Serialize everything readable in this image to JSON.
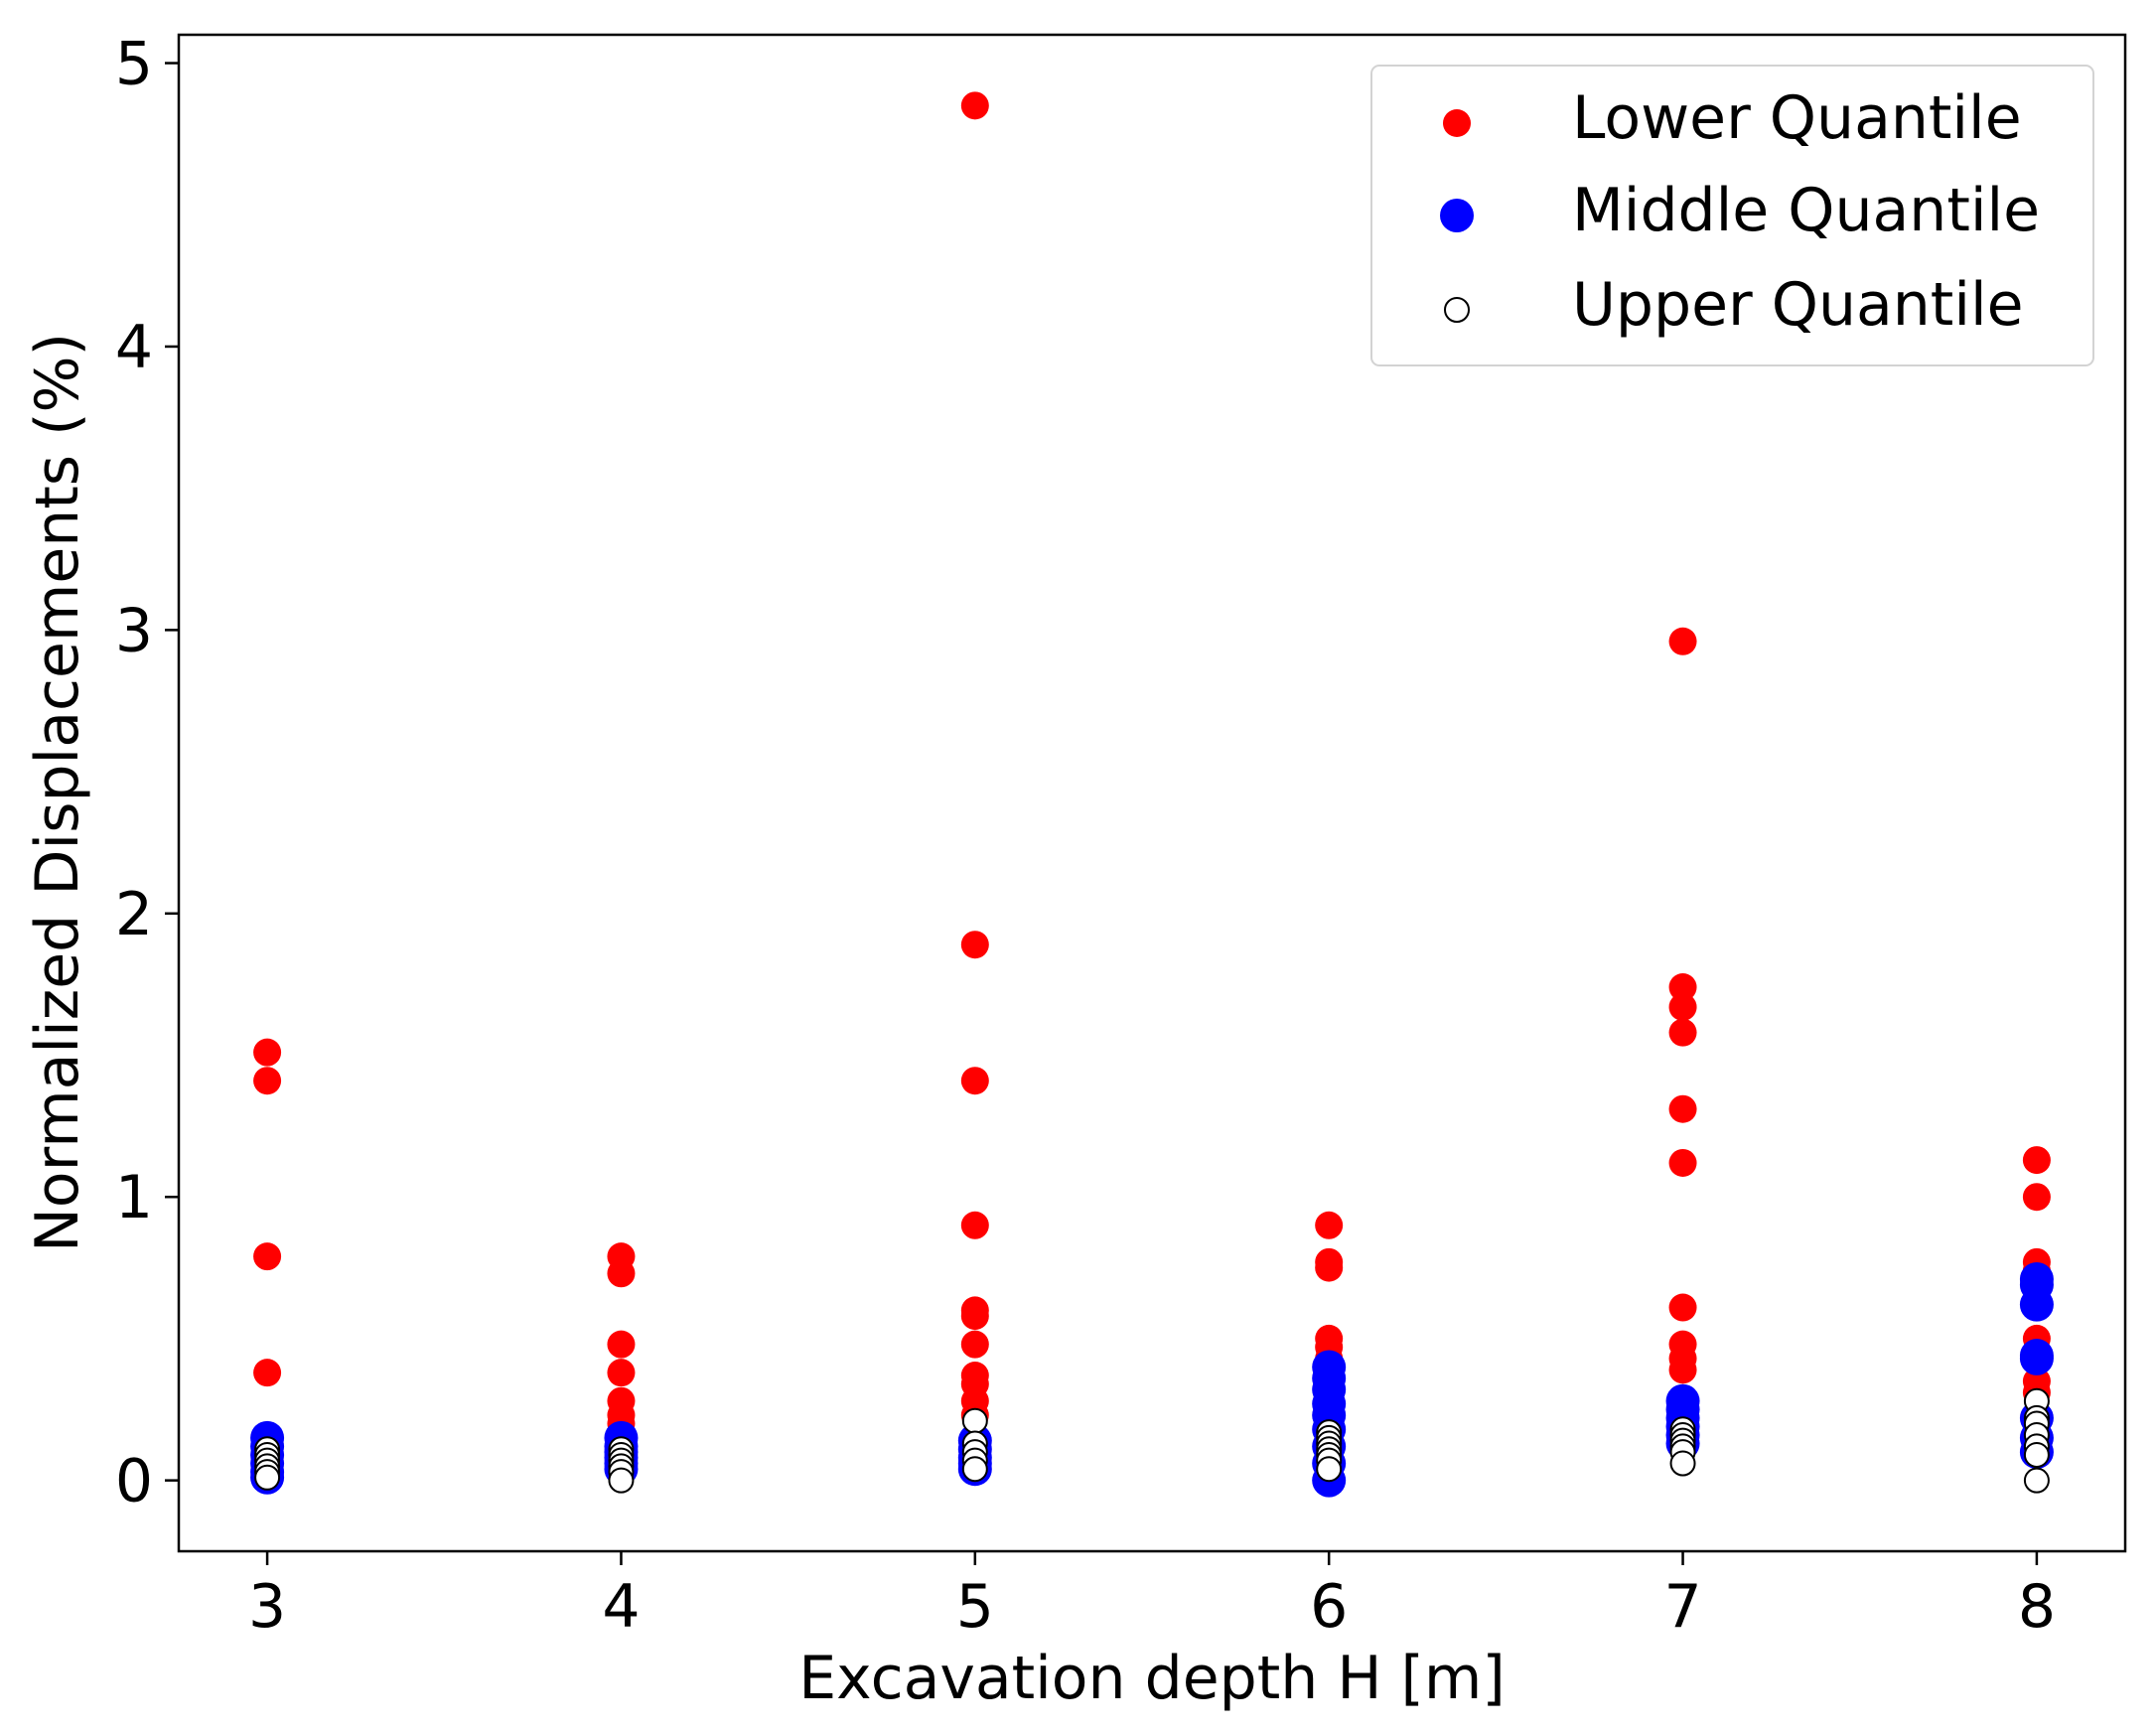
{
  "chart_data": {
    "type": "scatter",
    "title": "",
    "xlabel": "Excavation depth H [m]",
    "ylabel": "Normalized Displacements (%)",
    "xlim": [
      2.75,
      8.25
    ],
    "ylim": [
      -0.25,
      5.1
    ],
    "xticks": [
      3,
      4,
      5,
      6,
      7,
      8
    ],
    "yticks": [
      0,
      1,
      2,
      3,
      4,
      5
    ],
    "xtick_labels": [
      "3",
      "4",
      "5",
      "6",
      "7",
      "8"
    ],
    "ytick_labels": [
      "0",
      "1",
      "2",
      "3",
      "4",
      "5"
    ],
    "grid": false,
    "legend_position": "top-right",
    "series": [
      {
        "name": "Lower Quantile",
        "color": "#ff0000",
        "marker": "filled",
        "x": [
          3,
          3,
          3,
          3,
          4,
          4,
          4,
          4,
          4,
          4,
          4,
          5,
          5,
          5,
          5,
          5,
          5,
          5,
          5,
          5,
          5,
          5,
          6,
          6,
          6,
          6,
          6,
          6,
          6,
          7,
          7,
          7,
          7,
          7,
          7,
          7,
          7,
          7,
          7,
          8,
          8,
          8,
          8,
          8,
          8,
          8
        ],
        "y": [
          1.51,
          1.41,
          0.79,
          0.38,
          0.79,
          0.73,
          0.48,
          0.38,
          0.28,
          0.23,
          0.2,
          4.85,
          1.89,
          1.41,
          0.9,
          0.6,
          0.58,
          0.48,
          0.37,
          0.34,
          0.28,
          0.23,
          0.9,
          0.77,
          0.75,
          0.5,
          0.47,
          0.43,
          0.38,
          2.96,
          1.74,
          1.67,
          1.58,
          1.31,
          1.12,
          0.61,
          0.48,
          0.43,
          0.39,
          1.13,
          1.0,
          0.77,
          0.74,
          0.5,
          0.35,
          0.31
        ]
      },
      {
        "name": "Middle Quantile",
        "color": "#0000ff",
        "marker": "filled",
        "x": [
          3,
          3,
          3,
          3,
          3,
          3,
          4,
          4,
          4,
          4,
          4,
          4,
          5,
          5,
          5,
          5,
          5,
          6,
          6,
          6,
          6,
          6,
          6,
          6,
          6,
          6,
          7,
          7,
          7,
          7,
          7,
          7,
          8,
          8,
          8,
          8,
          8,
          8,
          8,
          8
        ],
        "y": [
          0.15,
          0.12,
          0.09,
          0.06,
          0.03,
          0.01,
          0.15,
          0.12,
          0.1,
          0.08,
          0.06,
          0.04,
          0.14,
          0.11,
          0.08,
          0.06,
          0.04,
          0.4,
          0.36,
          0.32,
          0.27,
          0.23,
          0.18,
          0.12,
          0.06,
          0.0,
          0.28,
          0.25,
          0.22,
          0.19,
          0.16,
          0.13,
          0.71,
          0.69,
          0.62,
          0.44,
          0.43,
          0.22,
          0.15,
          0.1
        ]
      },
      {
        "name": "Upper Quantile",
        "color": "#ffffff",
        "marker": "hollow",
        "x": [
          3,
          3,
          3,
          3,
          3,
          3,
          4,
          4,
          4,
          4,
          4,
          4,
          5,
          5,
          5,
          5,
          5,
          6,
          6,
          6,
          6,
          6,
          6,
          6,
          7,
          7,
          7,
          7,
          7,
          7,
          8,
          8,
          8,
          8,
          8,
          8,
          8
        ],
        "y": [
          0.11,
          0.09,
          0.07,
          0.05,
          0.03,
          0.01,
          0.11,
          0.09,
          0.07,
          0.05,
          0.03,
          0.0,
          0.21,
          0.13,
          0.1,
          0.07,
          0.04,
          0.17,
          0.15,
          0.13,
          0.11,
          0.09,
          0.07,
          0.04,
          0.18,
          0.16,
          0.14,
          0.12,
          0.1,
          0.06,
          0.28,
          0.22,
          0.2,
          0.16,
          0.12,
          0.09,
          0.0
        ]
      }
    ]
  }
}
